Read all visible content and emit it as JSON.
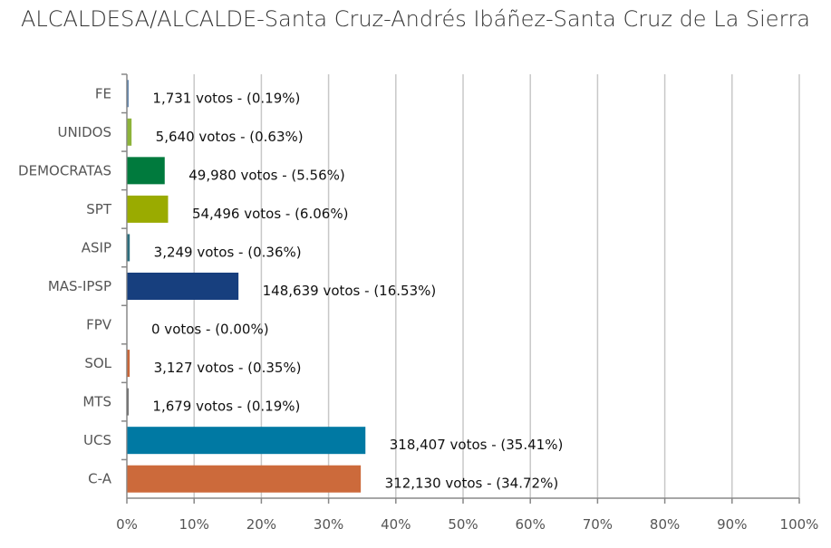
{
  "chart_data": {
    "type": "bar",
    "orientation": "horizontal",
    "title": "ALCALDESA/ALCALDE-Santa Cruz-Andrés Ibáñez-Santa Cruz de La Sierra",
    "xlim": [
      0,
      100
    ],
    "x_ticks": [
      "0%",
      "10%",
      "20%",
      "30%",
      "40%",
      "50%",
      "60%",
      "70%",
      "80%",
      "90%",
      "100%"
    ],
    "grid": true,
    "categories": [
      "FE",
      "UNIDOS",
      "DEMOCRATAS",
      "SPT",
      "ASIP",
      "MAS-IPSP",
      "FPV",
      "SOL",
      "MTS",
      "UCS",
      "C-A"
    ],
    "values": [
      0.19,
      0.63,
      5.56,
      6.06,
      0.36,
      16.53,
      0.0,
      0.35,
      0.19,
      35.41,
      34.72
    ],
    "votes": [
      1731,
      5640,
      49980,
      54496,
      3249,
      148639,
      0,
      3127,
      1679,
      318407,
      312130
    ],
    "data_labels": [
      "1,731 votos - (0.19%)",
      "5,640 votos - (0.63%)",
      "49,980 votos - (5.56%)",
      "54,496 votos - (6.06%)",
      "3,249 votos - (0.36%)",
      "148,639 votos - (16.53%)",
      "0 votos - (0.00%)",
      "3,127 votos - (0.35%)",
      "1,679 votos - (0.19%)",
      "318,407 votos - (35.41%)",
      "312,130 votos - (34.72%)"
    ],
    "colors": [
      "#5a7fa8",
      "#8db33a",
      "#007a3d",
      "#9aab00",
      "#2d6e7e",
      "#173f7e",
      "#888888",
      "#c8673a",
      "#666666",
      "#0079a3",
      "#cc6a3b"
    ]
  }
}
